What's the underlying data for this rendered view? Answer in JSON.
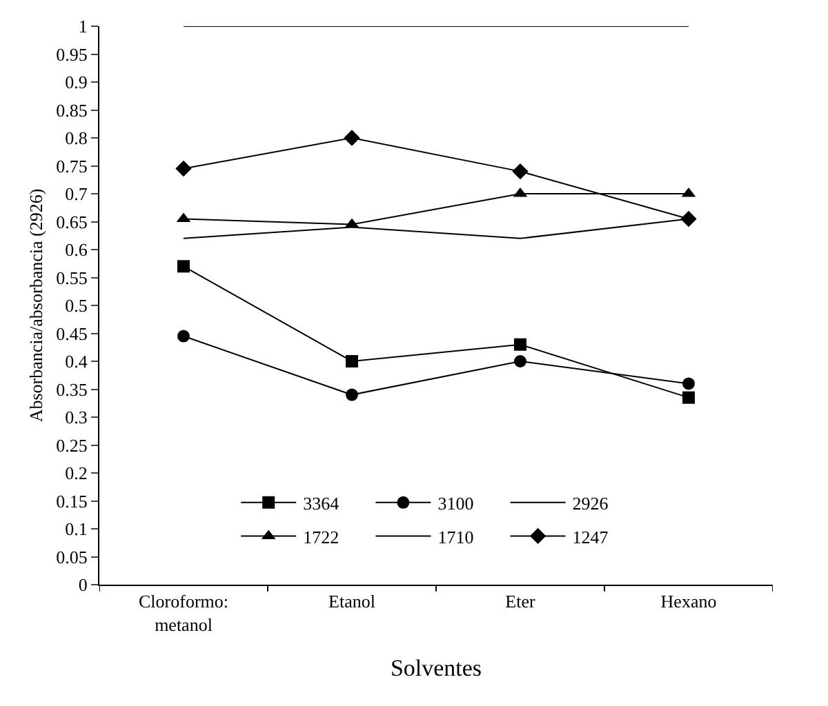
{
  "chart_data": {
    "type": "line",
    "xlabel": "Solventes",
    "ylabel": "Absorbancia/absorbancia (2926)",
    "categories": [
      "Cloroformo:\nmetanol",
      "Etanol",
      "Eter",
      "Hexano"
    ],
    "ylim": [
      0,
      1
    ],
    "yticks": [
      0,
      0.05,
      0.1,
      0.15,
      0.2,
      0.25,
      0.3,
      0.35,
      0.4,
      0.45,
      0.5,
      0.55,
      0.6,
      0.65,
      0.7,
      0.75,
      0.8,
      0.85,
      0.9,
      0.95,
      1
    ],
    "grid": false,
    "legend": "bottom",
    "line_style": "solid",
    "series": [
      {
        "name": "3364",
        "color": "#000000",
        "marker": "square",
        "values": [
          0.57,
          0.4,
          0.43,
          0.335
        ]
      },
      {
        "name": "3100",
        "color": "#000000",
        "marker": "circle",
        "values": [
          0.445,
          0.34,
          0.4,
          0.36
        ]
      },
      {
        "name": "2926",
        "color": "#000000",
        "marker": "none",
        "values": [
          1,
          1,
          1,
          1
        ]
      },
      {
        "name": "1722",
        "color": "#000000",
        "marker": "triangle",
        "values": [
          0.655,
          0.645,
          0.7,
          0.7
        ]
      },
      {
        "name": "1710",
        "color": "#000000",
        "marker": "none",
        "values": [
          0.62,
          0.64,
          0.62,
          0.655
        ]
      },
      {
        "name": "1247",
        "color": "#000000",
        "marker": "diamond",
        "values": [
          0.745,
          0.8,
          0.74,
          0.655
        ]
      }
    ]
  }
}
